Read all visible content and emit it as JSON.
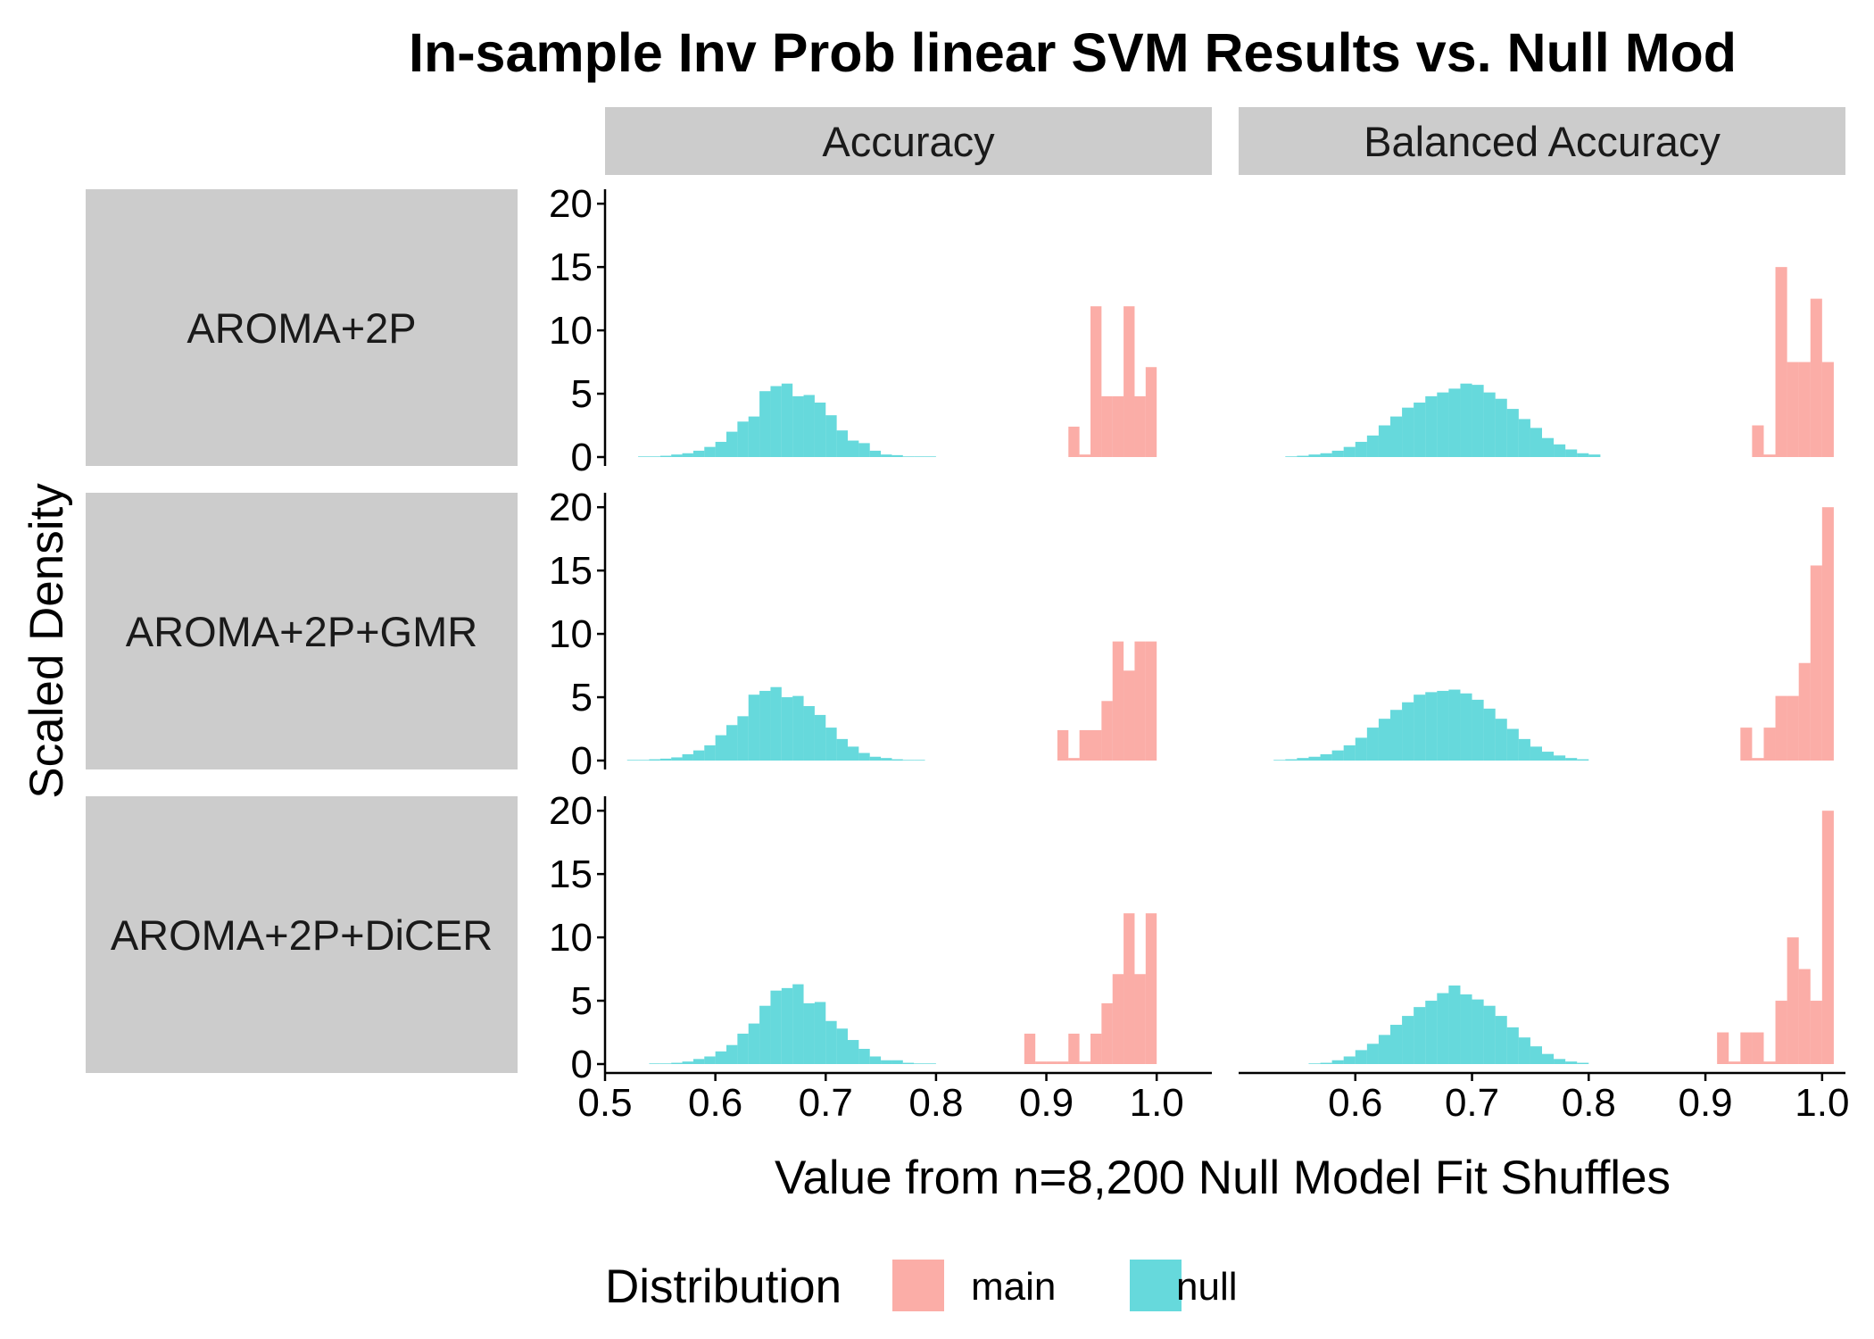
{
  "chart_data": {
    "type": "bar",
    "title": "In-sample Inv Prob linear SVM Results vs. Null Mod",
    "xlabel": "Value from n=8,200 Null Model Fit Shuffles",
    "ylabel": "Scaled Density",
    "bin_width": 0.01,
    "ylim": [
      0,
      21
    ],
    "y_ticks": [
      0,
      5,
      10,
      15,
      20
    ],
    "column_facets": [
      "Accuracy",
      "Balanced Accuracy"
    ],
    "row_facets": [
      "AROMA+2P",
      "AROMA+2P+GMR",
      "AROMA+2P+DiCER"
    ],
    "legend": {
      "title": "Distribution",
      "position": "bottom",
      "items": [
        {
          "label": "main",
          "color": "#F8766D"
        },
        {
          "label": "null",
          "color": "#00BFC4"
        }
      ]
    },
    "series_colors": {
      "main": "#F8766D",
      "null": "#00BFC4"
    },
    "panels": [
      {
        "row": "AROMA+2P",
        "col": "Accuracy",
        "xlim": [
          0.5,
          1.05
        ],
        "x_ticks": [
          0.5,
          0.6,
          0.7,
          0.8,
          0.9,
          1.0
        ],
        "x_tick_labels": [
          "0.5",
          "0.6",
          "0.7",
          "0.8",
          "0.9",
          "1.0"
        ],
        "series": [
          {
            "name": "null",
            "bin_starts": [
              0.53,
              0.54,
              0.55,
              0.56,
              0.57,
              0.58,
              0.59,
              0.6,
              0.61,
              0.62,
              0.63,
              0.64,
              0.65,
              0.66,
              0.67,
              0.68,
              0.69,
              0.7,
              0.71,
              0.72,
              0.73,
              0.74,
              0.75,
              0.76,
              0.77,
              0.78,
              0.79
            ],
            "values": [
              0.05,
              0.05,
              0.1,
              0.2,
              0.3,
              0.5,
              0.8,
              1.2,
              2.0,
              2.8,
              3.2,
              5.2,
              5.6,
              5.8,
              4.8,
              4.9,
              4.3,
              3.3,
              2.1,
              1.3,
              1.1,
              0.5,
              0.2,
              0.15,
              0.05,
              0.05,
              0.05
            ]
          },
          {
            "name": "main",
            "bin_starts": [
              0.92,
              0.93,
              0.94,
              0.95,
              0.96,
              0.97,
              0.98,
              0.99
            ],
            "values": [
              2.4,
              0.2,
              11.9,
              4.8,
              4.8,
              11.9,
              4.8,
              7.1
            ]
          }
        ]
      },
      {
        "row": "AROMA+2P",
        "col": "Balanced Accuracy",
        "xlim": [
          0.5,
          1.02
        ],
        "x_ticks": [
          0.6,
          0.7,
          0.8,
          0.9,
          1.0
        ],
        "x_tick_labels": [
          "0.6",
          "0.7",
          "0.8",
          "0.9",
          "1.0"
        ],
        "series": [
          {
            "name": "null",
            "bin_starts": [
              0.54,
              0.55,
              0.56,
              0.57,
              0.58,
              0.59,
              0.6,
              0.61,
              0.62,
              0.63,
              0.64,
              0.65,
              0.66,
              0.67,
              0.68,
              0.69,
              0.7,
              0.71,
              0.72,
              0.73,
              0.74,
              0.75,
              0.76,
              0.77,
              0.78,
              0.79,
              0.8
            ],
            "values": [
              0.05,
              0.1,
              0.2,
              0.3,
              0.5,
              0.8,
              1.2,
              1.7,
              2.5,
              3.2,
              3.9,
              4.3,
              4.8,
              5.1,
              5.4,
              5.8,
              5.7,
              5.1,
              4.6,
              3.8,
              3.0,
              2.3,
              1.5,
              1.0,
              0.6,
              0.3,
              0.2
            ]
          },
          {
            "name": "main",
            "bin_starts": [
              0.94,
              0.95,
              0.96,
              0.97,
              0.98,
              0.99,
              1.0
            ],
            "values": [
              2.5,
              0.2,
              15.0,
              7.5,
              7.5,
              12.5,
              7.5
            ]
          }
        ]
      },
      {
        "row": "AROMA+2P+GMR",
        "col": "Accuracy",
        "xlim": [
          0.5,
          1.05
        ],
        "x_ticks": [
          0.5,
          0.6,
          0.7,
          0.8,
          0.9,
          1.0
        ],
        "x_tick_labels": [
          "0.5",
          "0.6",
          "0.7",
          "0.8",
          "0.9",
          "1.0"
        ],
        "series": [
          {
            "name": "null",
            "bin_starts": [
              0.52,
              0.53,
              0.54,
              0.55,
              0.56,
              0.57,
              0.58,
              0.59,
              0.6,
              0.61,
              0.62,
              0.63,
              0.64,
              0.65,
              0.66,
              0.67,
              0.68,
              0.69,
              0.7,
              0.71,
              0.72,
              0.73,
              0.74,
              0.75,
              0.76,
              0.77,
              0.78
            ],
            "values": [
              0.05,
              0.05,
              0.1,
              0.15,
              0.25,
              0.5,
              0.8,
              1.2,
              2.0,
              2.8,
              3.5,
              5.2,
              5.5,
              5.8,
              5.0,
              5.1,
              4.3,
              3.6,
              2.6,
              1.7,
              1.1,
              0.6,
              0.3,
              0.2,
              0.1,
              0.05,
              0.05
            ]
          },
          {
            "name": "main",
            "bin_starts": [
              0.91,
              0.92,
              0.93,
              0.94,
              0.95,
              0.96,
              0.97,
              0.98,
              0.99
            ],
            "values": [
              2.4,
              0.2,
              2.4,
              2.4,
              4.7,
              9.4,
              7.1,
              9.4,
              9.4
            ]
          }
        ]
      },
      {
        "row": "AROMA+2P+GMR",
        "col": "Balanced Accuracy",
        "xlim": [
          0.5,
          1.02
        ],
        "x_ticks": [
          0.6,
          0.7,
          0.8,
          0.9,
          1.0
        ],
        "x_tick_labels": [
          "0.6",
          "0.7",
          "0.8",
          "0.9",
          "1.0"
        ],
        "series": [
          {
            "name": "null",
            "bin_starts": [
              0.53,
              0.54,
              0.55,
              0.56,
              0.57,
              0.58,
              0.59,
              0.6,
              0.61,
              0.62,
              0.63,
              0.64,
              0.65,
              0.66,
              0.67,
              0.68,
              0.69,
              0.7,
              0.71,
              0.72,
              0.73,
              0.74,
              0.75,
              0.76,
              0.77,
              0.78,
              0.79
            ],
            "values": [
              0.05,
              0.1,
              0.2,
              0.3,
              0.5,
              0.8,
              1.2,
              1.8,
              2.6,
              3.3,
              4.0,
              4.6,
              5.2,
              5.4,
              5.5,
              5.6,
              5.3,
              4.8,
              4.1,
              3.3,
              2.5,
              1.7,
              1.1,
              0.7,
              0.4,
              0.2,
              0.1
            ]
          },
          {
            "name": "main",
            "bin_starts": [
              0.93,
              0.94,
              0.95,
              0.96,
              0.97,
              0.98,
              0.99,
              1.0
            ],
            "values": [
              2.6,
              0.2,
              2.6,
              5.1,
              5.1,
              7.7,
              15.4,
              20.0
            ]
          }
        ]
      },
      {
        "row": "AROMA+2P+DiCER",
        "col": "Accuracy",
        "xlim": [
          0.5,
          1.05
        ],
        "x_ticks": [
          0.5,
          0.6,
          0.7,
          0.8,
          0.9,
          1.0
        ],
        "x_tick_labels": [
          "0.5",
          "0.6",
          "0.7",
          "0.8",
          "0.9",
          "1.0"
        ],
        "series": [
          {
            "name": "null",
            "bin_starts": [
              0.54,
              0.55,
              0.56,
              0.57,
              0.58,
              0.59,
              0.6,
              0.61,
              0.62,
              0.63,
              0.64,
              0.65,
              0.66,
              0.67,
              0.68,
              0.69,
              0.7,
              0.71,
              0.72,
              0.73,
              0.74,
              0.75,
              0.76,
              0.77,
              0.78,
              0.79
            ],
            "values": [
              0.05,
              0.05,
              0.1,
              0.2,
              0.4,
              0.6,
              1.0,
              1.5,
              2.4,
              3.2,
              4.6,
              5.8,
              6.0,
              6.3,
              4.8,
              4.9,
              3.4,
              2.8,
              1.9,
              1.2,
              0.6,
              0.3,
              0.3,
              0.1,
              0.05,
              0.05
            ]
          },
          {
            "name": "main",
            "bin_starts": [
              0.88,
              0.89,
              0.9,
              0.91,
              0.92,
              0.93,
              0.94,
              0.95,
              0.96,
              0.97,
              0.98,
              0.99
            ],
            "values": [
              2.4,
              0.2,
              0.2,
              0.2,
              2.4,
              0.2,
              2.4,
              4.8,
              7.1,
              11.9,
              7.1,
              11.9
            ]
          }
        ]
      },
      {
        "row": "AROMA+2P+DiCER",
        "col": "Balanced Accuracy",
        "xlim": [
          0.5,
          1.02
        ],
        "x_ticks": [
          0.6,
          0.7,
          0.8,
          0.9,
          1.0
        ],
        "x_tick_labels": [
          "0.6",
          "0.7",
          "0.8",
          "0.9",
          "1.0"
        ],
        "series": [
          {
            "name": "null",
            "bin_starts": [
              0.56,
              0.57,
              0.58,
              0.59,
              0.6,
              0.61,
              0.62,
              0.63,
              0.64,
              0.65,
              0.66,
              0.67,
              0.68,
              0.69,
              0.7,
              0.71,
              0.72,
              0.73,
              0.74,
              0.75,
              0.76,
              0.77,
              0.78,
              0.79
            ],
            "values": [
              0.05,
              0.1,
              0.3,
              0.6,
              1.1,
              1.6,
              2.3,
              3.1,
              3.8,
              4.5,
              5.0,
              5.6,
              6.2,
              5.5,
              5.1,
              4.6,
              3.8,
              2.9,
              2.1,
              1.4,
              0.8,
              0.4,
              0.2,
              0.1
            ]
          },
          {
            "name": "main",
            "bin_starts": [
              0.91,
              0.92,
              0.93,
              0.94,
              0.95,
              0.96,
              0.97,
              0.98,
              0.99,
              1.0
            ],
            "values": [
              2.5,
              0.2,
              2.5,
              2.5,
              0.2,
              5.0,
              10.0,
              7.5,
              5.0,
              20.0
            ]
          }
        ]
      }
    ]
  }
}
